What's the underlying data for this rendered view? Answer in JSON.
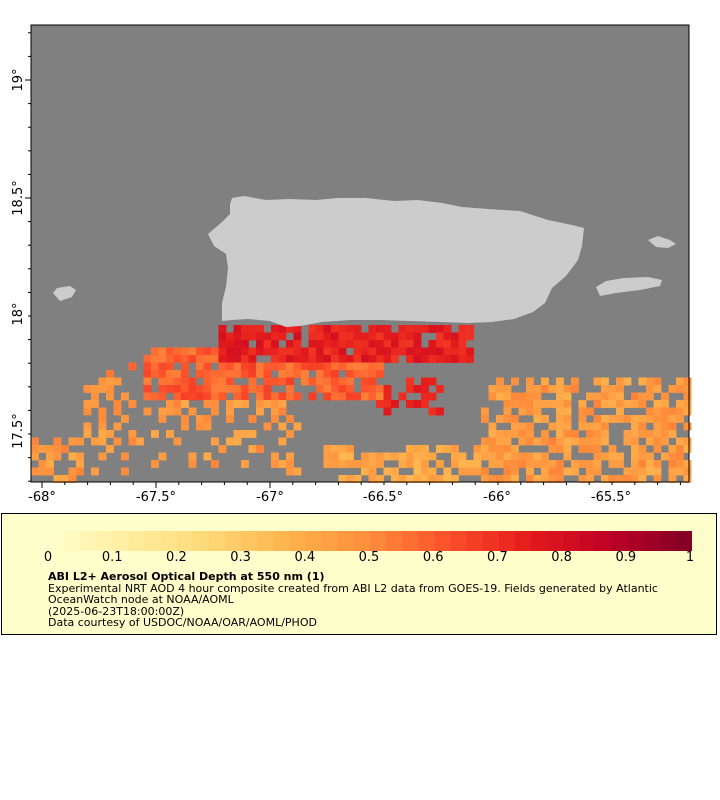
{
  "map": {
    "lat_labels": [
      "19°",
      "18.5°",
      "18°",
      "17.5°"
    ],
    "lon_labels": [
      "-68°",
      "-67.5°",
      "-67°",
      "-66.5°",
      "-66°",
      "-65.5°"
    ],
    "colors": {
      "background": "#808080",
      "land": "#cccccc"
    }
  },
  "legend": {
    "tick_labels": [
      "0",
      "0.1",
      "0.2",
      "0.3",
      "0.4",
      "0.5",
      "0.6",
      "0.7",
      "0.8",
      "0.9",
      "1"
    ],
    "title": "ABI L2+ Aerosol Optical Depth at 550 nm (1)",
    "line1": "Experimental NRT AOD 4 hour composite created from ABI L2 data from GOES-19. Fields generated by Atlantic OceanWatch node at NOAA/AOML",
    "line2": "(2025-06-23T18:00:00Z)",
    "line3": "Data courtesy of USDOC/NOAA/OAR/AOML/PHOD"
  }
}
